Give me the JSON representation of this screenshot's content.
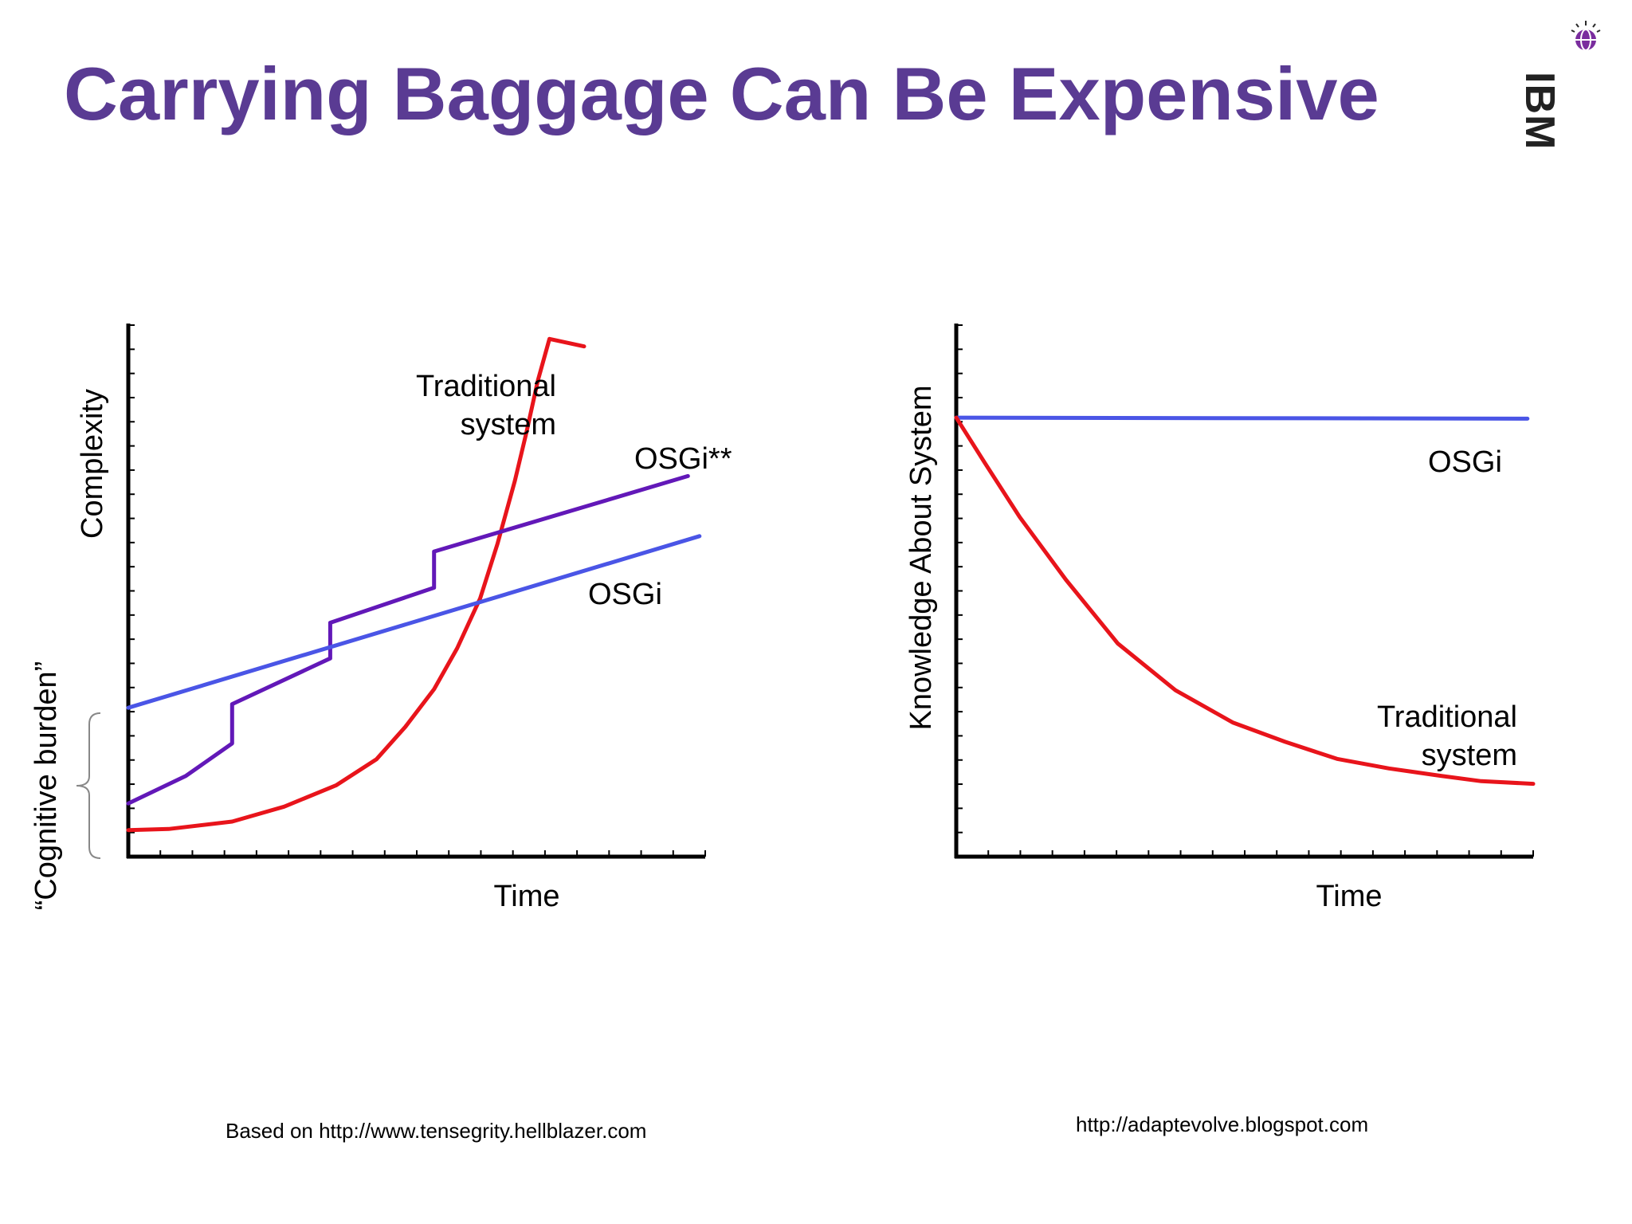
{
  "slide": {
    "title": "Carrying Baggage Can Be Expensive",
    "logo_text": "IBM",
    "footnote_left": "Based on http://www.tensegrity.hellblazer.com",
    "footnote_right": "http://adaptevolve.blogspot.com"
  },
  "colors": {
    "title": "#5a3b93",
    "traditional": "#e8141b",
    "osgi": "#4a55e6",
    "osgi_star": "#6218b8",
    "axis": "#000000"
  },
  "chart_data": [
    {
      "type": "line",
      "xlabel": "Time",
      "ylabel": "Complexity",
      "xlim": [
        0,
        100
      ],
      "ylim": [
        0,
        100
      ],
      "side_bracket_label": "“Cognitive burden”",
      "side_bracket_range": [
        0,
        27
      ],
      "series": [
        {
          "name": "Traditional system",
          "label_lines": [
            "Traditional",
            "system"
          ],
          "color": "#e8141b",
          "points": [
            [
              0,
              5
            ],
            [
              7,
              5.2
            ],
            [
              18,
              6.6
            ],
            [
              27,
              9.4
            ],
            [
              36,
              13.4
            ],
            [
              43,
              18.3
            ],
            [
              48,
              24.4
            ],
            [
              53,
              31.5
            ],
            [
              57,
              39.2
            ],
            [
              61,
              48.6
            ],
            [
              64,
              58.9
            ],
            [
              67,
              70.7
            ],
            [
              69,
              79.8
            ],
            [
              71,
              89.6
            ],
            [
              73,
              97.4
            ],
            [
              79,
              96
            ]
          ]
        },
        {
          "name": "OSGi**",
          "color": "#6218b8",
          "points": [
            [
              0,
              10
            ],
            [
              10,
              15.2
            ],
            [
              18,
              21.3
            ],
            [
              18,
              28.7
            ],
            [
              35,
              37.3
            ],
            [
              35,
              44
            ],
            [
              53,
              50.6
            ],
            [
              53,
              57.4
            ],
            [
              97,
              71.6
            ]
          ]
        },
        {
          "name": "OSGi",
          "color": "#4a55e6",
          "points": [
            [
              0,
              28
            ],
            [
              99,
              60.3
            ]
          ]
        }
      ]
    },
    {
      "type": "line",
      "xlabel": "Time",
      "ylabel": "Knowledge About System",
      "xlim": [
        0,
        100
      ],
      "ylim": [
        0,
        100
      ],
      "series": [
        {
          "name": "OSGi",
          "color": "#4a55e6",
          "points": [
            [
              0,
              82.6
            ],
            [
              99,
              82.4
            ]
          ]
        },
        {
          "name": "Traditional system",
          "label_lines": [
            "Traditional",
            "system"
          ],
          "color": "#e8141b",
          "points": [
            [
              0,
              82.6
            ],
            [
              5,
              74
            ],
            [
              11,
              63.9
            ],
            [
              19,
              52.1
            ],
            [
              28,
              40.1
            ],
            [
              38,
              31.3
            ],
            [
              48,
              25.2
            ],
            [
              57,
              21.6
            ],
            [
              66,
              18.4
            ],
            [
              75,
              16.6
            ],
            [
              84,
              15.2
            ],
            [
              91,
              14.2
            ],
            [
              100,
              13.7
            ]
          ]
        }
      ]
    }
  ]
}
